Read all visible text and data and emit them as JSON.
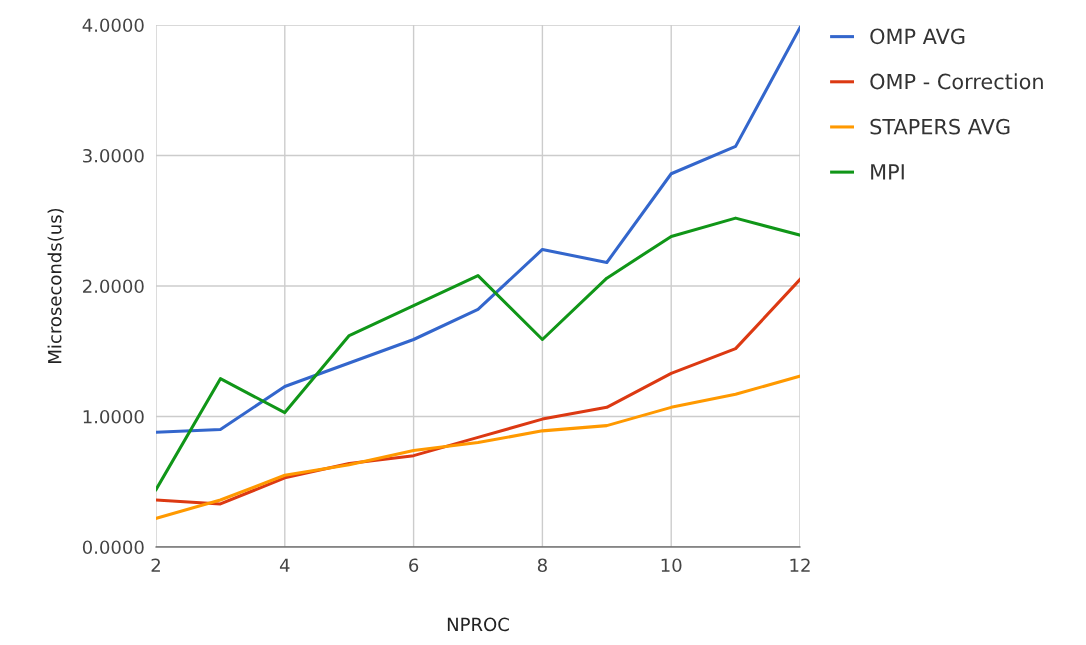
{
  "chart_data": {
    "type": "line",
    "xlabel": "NPROC",
    "ylabel": "Microseconds(us)",
    "x": [
      2,
      3,
      4,
      5,
      6,
      7,
      8,
      9,
      10,
      11,
      12
    ],
    "series": [
      {
        "name": "OMP AVG",
        "color": "#3366cc",
        "values": [
          0.88,
          0.9,
          1.23,
          1.41,
          1.59,
          1.82,
          2.28,
          2.18,
          2.86,
          3.07,
          3.98
        ]
      },
      {
        "name": "OMP - Correction",
        "color": "#dc3912",
        "values": [
          0.36,
          0.33,
          0.53,
          0.64,
          0.7,
          0.84,
          0.98,
          1.07,
          1.33,
          1.52,
          2.05
        ]
      },
      {
        "name": "STAPERS AVG",
        "color": "#ff9900",
        "values": [
          0.22,
          0.36,
          0.55,
          0.63,
          0.74,
          0.8,
          0.89,
          0.93,
          1.07,
          1.17,
          1.31
        ]
      },
      {
        "name": "MPI",
        "color": "#109618",
        "values": [
          0.44,
          1.29,
          1.03,
          1.62,
          1.85,
          2.08,
          1.59,
          2.06,
          2.38,
          2.52,
          2.39
        ]
      }
    ],
    "xlim": [
      2,
      12
    ],
    "xticks": [
      2,
      4,
      6,
      8,
      10,
      12
    ],
    "ylim": [
      0,
      4
    ],
    "yticks": [
      {
        "value": 0,
        "label": "0.0000"
      },
      {
        "value": 1,
        "label": "1.0000"
      },
      {
        "value": 2,
        "label": "2.0000"
      },
      {
        "value": 3,
        "label": "3.0000"
      },
      {
        "value": 4,
        "label": "4.0000"
      }
    ],
    "grid": true,
    "legend": "top right",
    "marker": "none",
    "line_style": "solid"
  }
}
